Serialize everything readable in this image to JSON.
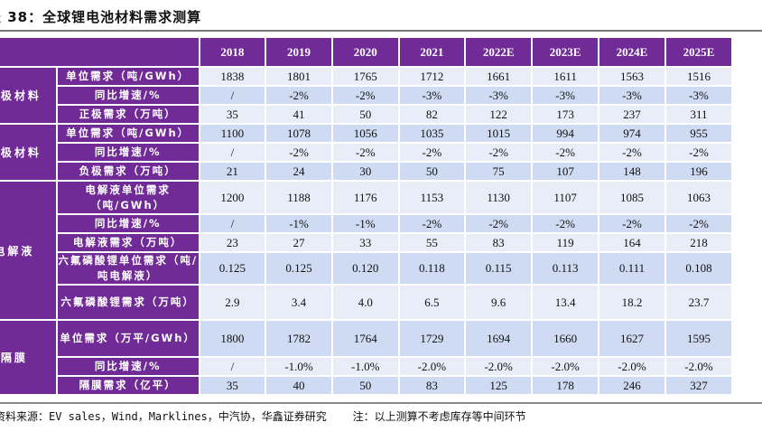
{
  "title": "表 38：全球锂电池材料需求测算",
  "header": [
    "2018",
    "2019",
    "2020",
    "2021",
    "2022E",
    "2023E",
    "2024E",
    "2025E"
  ],
  "groups": [
    {
      "category": "正极材料",
      "rows": [
        {
          "label": "单位需求（吨/GWh）",
          "values": [
            "1838",
            "1801",
            "1765",
            "1712",
            "1661",
            "1611",
            "1563",
            "1516"
          ],
          "h": 19
        },
        {
          "label": "同比增速/%",
          "values": [
            "/",
            "-2%",
            "-2%",
            "-3%",
            "-3%",
            "-3%",
            "-3%",
            "-3%"
          ],
          "h": 19
        },
        {
          "label": "正极需求（万吨）",
          "values": [
            "35",
            "41",
            "50",
            "82",
            "122",
            "173",
            "237",
            "311"
          ],
          "h": 19
        }
      ]
    },
    {
      "category": "负极材料",
      "rows": [
        {
          "label": "单位需求（吨/GWh）",
          "values": [
            "1100",
            "1078",
            "1056",
            "1035",
            "1015",
            "994",
            "974",
            "955"
          ],
          "h": 19
        },
        {
          "label": "同比增速/%",
          "values": [
            "/",
            "-2%",
            "-2%",
            "-2%",
            "-2%",
            "-2%",
            "-2%",
            "-2%"
          ],
          "h": 19
        },
        {
          "label": "负极需求（万吨）",
          "values": [
            "21",
            "24",
            "30",
            "50",
            "75",
            "107",
            "148",
            "196"
          ],
          "h": 19
        }
      ]
    },
    {
      "category": "电解液",
      "rows": [
        {
          "label": "电解液单位需求（吨/GWh）",
          "values": [
            "1200",
            "1188",
            "1176",
            "1153",
            "1130",
            "1107",
            "1085",
            "1063"
          ],
          "h": 35
        },
        {
          "label": "同比增速/%",
          "values": [
            "/",
            "-1%",
            "-1%",
            "-2%",
            "-2%",
            "-2%",
            "-2%",
            "-2%"
          ],
          "h": 19
        },
        {
          "label": "电解液需求（万吨）",
          "values": [
            "23",
            "27",
            "33",
            "55",
            "83",
            "119",
            "164",
            "218"
          ],
          "h": 19
        },
        {
          "label": "六氟磷酸锂单位需求（吨/吨电解液）",
          "values": [
            "0.125",
            "0.125",
            "0.120",
            "0.118",
            "0.115",
            "0.113",
            "0.111",
            "0.108"
          ],
          "h": 34
        },
        {
          "label": "六氟磷酸锂需求（万吨）",
          "values": [
            "2.9",
            "3.4",
            "4.0",
            "6.5",
            "9.6",
            "13.4",
            "18.2",
            "23.7"
          ],
          "h": 37
        }
      ]
    },
    {
      "category": "隔膜",
      "rows": [
        {
          "label": "单位需求（万平/GWh）",
          "values": [
            "1800",
            "1782",
            "1764",
            "1729",
            "1694",
            "1660",
            "1627",
            "1595"
          ],
          "h": 39
        },
        {
          "label": "同比增速/%",
          "values": [
            "/",
            "-1.0%",
            "-1.0%",
            "-2.0%",
            "-2.0%",
            "-2.0%",
            "-2.0%",
            "-2.0%"
          ],
          "h": 19
        },
        {
          "label": "隔膜需求（亿平）",
          "values": [
            "35",
            "40",
            "50",
            "83",
            "125",
            "178",
            "246",
            "327"
          ],
          "h": 19
        }
      ]
    }
  ],
  "source": "资料来源：EV sales，Wind，Marklines，中汽协，华鑫证券研究    注：以上测算不考虑库存等中间环节",
  "colors": {
    "header_purple": "#702b96",
    "row_light": "#e8edf8",
    "row_dark": "#cfdbf2"
  }
}
